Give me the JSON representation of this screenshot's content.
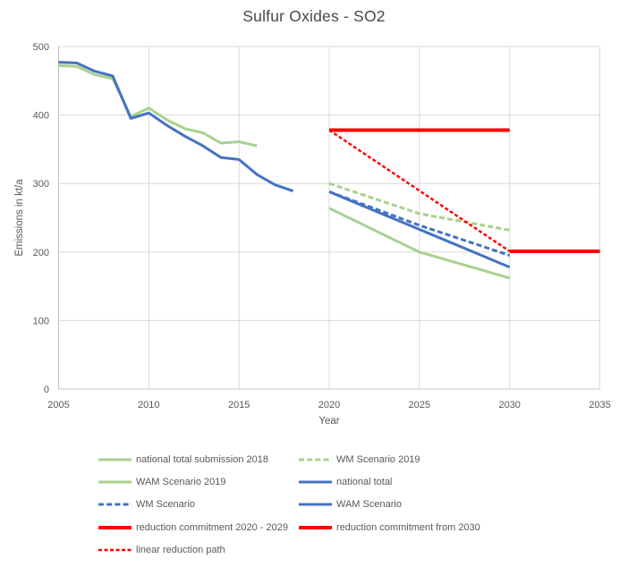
{
  "title": "Sulfur Oxides - SO2",
  "colors": {
    "green": "#A9D18E",
    "blue": "#4472C4",
    "red": "#FF0000",
    "gridline": "#D9D9D9",
    "axis_line": "#C0C0C0",
    "text": "#595959"
  },
  "chart_data": {
    "type": "line",
    "title": "Sulfur Oxides - SO2",
    "xlabel": "Year",
    "ylabel": "Emissions in kt/a",
    "xlim": [
      2005,
      2035
    ],
    "ylim": [
      0,
      500
    ],
    "x_ticks": [
      2005,
      2010,
      2015,
      2020,
      2025,
      2030,
      2035
    ],
    "y_ticks": [
      0,
      100,
      200,
      300,
      400,
      500
    ],
    "grid": true,
    "legend_position": "bottom",
    "series": [
      {
        "name": "national total submission 2018",
        "color": "#A9D18E",
        "dash": "solid",
        "width": 3,
        "x": [
          2005,
          2006,
          2007,
          2008,
          2009,
          2010,
          2011,
          2012,
          2013,
          2014,
          2015,
          2016
        ],
        "y": [
          472,
          471,
          459,
          453,
          398,
          410,
          393,
          380,
          374,
          359,
          361,
          355
        ]
      },
      {
        "name": "WM Scenario 2019",
        "color": "#A9D18E",
        "dash": "dash",
        "width": 3,
        "x": [
          2020,
          2025,
          2030
        ],
        "y": [
          300,
          256,
          232
        ]
      },
      {
        "name": "WAM Scenario 2019",
        "color": "#A9D18E",
        "dash": "solid",
        "width": 3,
        "x": [
          2020,
          2025,
          2030
        ],
        "y": [
          264,
          200,
          162
        ]
      },
      {
        "name": "national total",
        "color": "#4472C4",
        "dash": "solid",
        "width": 3,
        "x": [
          2005,
          2006,
          2007,
          2008,
          2009,
          2010,
          2011,
          2012,
          2013,
          2014,
          2015,
          2016,
          2017,
          2018
        ],
        "y": [
          477,
          476,
          464,
          457,
          395,
          403,
          385,
          369,
          355,
          338,
          335,
          313,
          298,
          289
        ]
      },
      {
        "name": "WM Scenario",
        "color": "#4472C4",
        "dash": "dash",
        "width": 3,
        "x": [
          2020,
          2025,
          2030
        ],
        "y": [
          288,
          239,
          195
        ]
      },
      {
        "name": "WAM Scenario",
        "color": "#4472C4",
        "dash": "solid",
        "width": 3,
        "x": [
          2020,
          2025,
          2030
        ],
        "y": [
          288,
          233,
          178
        ]
      },
      {
        "name": "reduction commitment 2020 - 2029",
        "color": "#FF0000",
        "dash": "solid",
        "width": 4,
        "x": [
          2020,
          2030
        ],
        "y": [
          378,
          378
        ]
      },
      {
        "name": "reduction commitment from 2030",
        "color": "#FF0000",
        "dash": "solid",
        "width": 4,
        "x": [
          2030,
          2035
        ],
        "y": [
          201,
          201
        ]
      },
      {
        "name": "linear reduction path",
        "color": "#FF0000",
        "dash": "fine-dash",
        "width": 2.5,
        "x": [
          2020,
          2030
        ],
        "y": [
          378,
          201
        ]
      }
    ]
  }
}
